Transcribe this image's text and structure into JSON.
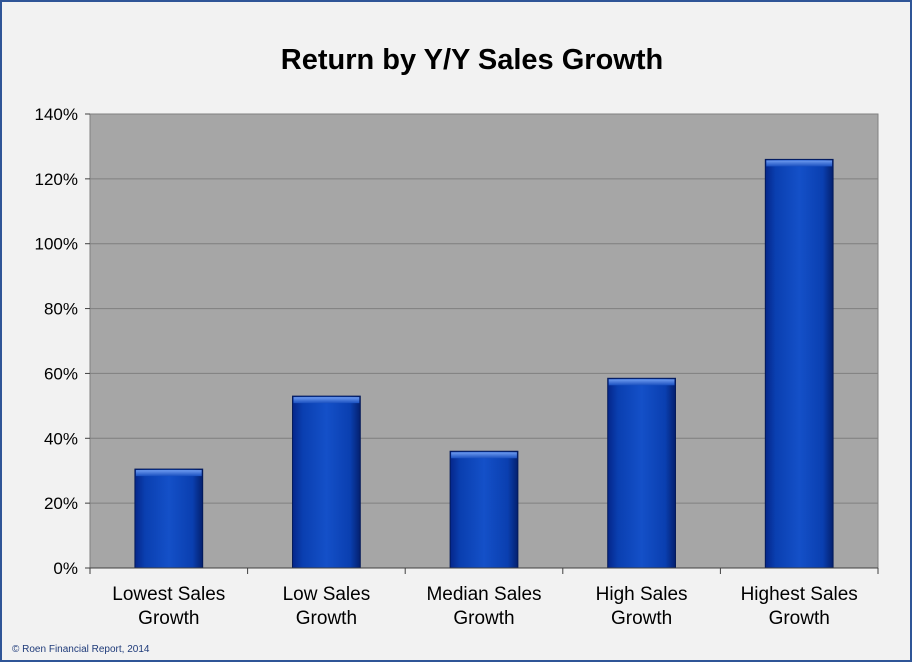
{
  "footer": "© Roen Financial Report, 2014",
  "colors": {
    "plot_bg": "#a6a6a6",
    "gridline": "#7f7f7f",
    "bar": "#0a3fb0",
    "bar_dark": "#05268a",
    "bar_light": "#3b6fe0",
    "border": "#2f5597"
  },
  "chart_data": {
    "type": "bar",
    "title": "Return by Y/Y Sales Growth",
    "xlabel": "",
    "ylabel": "",
    "categories": [
      [
        "Lowest Sales",
        "Growth"
      ],
      [
        "Low Sales",
        "Growth"
      ],
      [
        "Median Sales",
        "Growth"
      ],
      [
        "High Sales",
        "Growth"
      ],
      [
        "Highest Sales",
        "Growth"
      ]
    ],
    "values": [
      30.5,
      53,
      36,
      58.5,
      126
    ],
    "unit": "%",
    "ylim": [
      0,
      140
    ],
    "yticks": [
      0,
      20,
      40,
      60,
      80,
      100,
      120,
      140
    ],
    "ytick_labels": [
      "0%",
      "20%",
      "40%",
      "60%",
      "80%",
      "100%",
      "120%",
      "140%"
    ],
    "grid": true,
    "legend": "none"
  }
}
